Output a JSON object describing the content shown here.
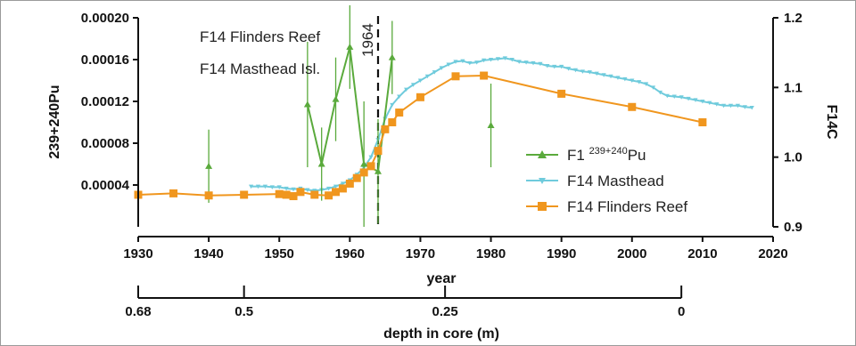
{
  "chart_data": {
    "type": "line",
    "xlabel": "year",
    "x_ticks": [
      1930,
      1940,
      1950,
      1960,
      1970,
      1980,
      1990,
      2000,
      2010,
      2020
    ],
    "xlim": [
      1930,
      2020
    ],
    "y_left": {
      "label_pre": "239+240",
      "label_main": "Pu",
      "ticks": [
        "0.00004",
        "0.00008",
        "0.00012",
        "0.00016",
        "0.00020"
      ],
      "ylim": [
        0,
        0.0002
      ]
    },
    "y_right": {
      "label": "F14C",
      "ticks": [
        "0.9",
        "1.0",
        "1.1",
        "1.2"
      ],
      "ylim": [
        0.9,
        1.2
      ]
    },
    "depth_axis": {
      "label": "depth in core (m)",
      "ticks": [
        {
          "label": "0.68",
          "year": 1930
        },
        {
          "label": "0.5",
          "year": 1945
        },
        {
          "label": "0.25",
          "year": 1973.5
        },
        {
          "label": "0",
          "year": 2007
        }
      ]
    },
    "marker_line": {
      "label": "1964",
      "year": 1964
    },
    "annotations": [
      "F14 Flinders Reef",
      "F14 Masthead Isl."
    ],
    "legend": {
      "position": "bottom-right",
      "pu_prefix": "F1 ",
      "pu_sup": "239+240",
      "pu_suffix": "Pu"
    },
    "series": [
      {
        "name": "F14 Masthead",
        "axis": "right",
        "color": "#6fcbdc",
        "marker": "triangle-down",
        "x": [
          1946,
          1947,
          1948,
          1949,
          1950,
          1951,
          1952,
          1953,
          1954,
          1955,
          1956,
          1957,
          1958,
          1959,
          1960,
          1961,
          1962,
          1963,
          1964,
          1965,
          1966,
          1967,
          1968,
          1969,
          1970,
          1971,
          1972,
          1973,
          1974,
          1975,
          1976,
          1977,
          1978,
          1979,
          1980,
          1981,
          1982,
          1983,
          1984,
          1985,
          1986,
          1987,
          1988,
          1989,
          1990,
          1991,
          1992,
          1993,
          1994,
          1995,
          1996,
          1997,
          1998,
          1999,
          2000,
          2001,
          2002,
          2003,
          2004,
          2005,
          2006,
          2007,
          2008,
          2009,
          2010,
          2011,
          2012,
          2013,
          2014,
          2015,
          2016,
          2017
        ],
        "y": [
          0.958,
          0.958,
          0.958,
          0.957,
          0.957,
          0.955,
          0.954,
          0.955,
          0.953,
          0.952,
          0.953,
          0.955,
          0.958,
          0.962,
          0.967,
          0.975,
          0.985,
          1.0,
          1.025,
          1.055,
          1.075,
          1.087,
          1.097,
          1.104,
          1.11,
          1.116,
          1.122,
          1.128,
          1.133,
          1.137,
          1.138,
          1.135,
          1.136,
          1.139,
          1.14,
          1.141,
          1.142,
          1.14,
          1.137,
          1.136,
          1.135,
          1.134,
          1.131,
          1.13,
          1.13,
          1.127,
          1.125,
          1.123,
          1.122,
          1.12,
          1.118,
          1.116,
          1.114,
          1.112,
          1.11,
          1.108,
          1.105,
          1.1,
          1.093,
          1.088,
          1.087,
          1.086,
          1.084,
          1.082,
          1.08,
          1.078,
          1.076,
          1.074,
          1.074,
          1.074,
          1.072,
          1.071
        ]
      },
      {
        "name": "F14 Flinders Reef",
        "axis": "right",
        "color": "#f0961e",
        "marker": "square",
        "x": [
          1930,
          1935,
          1940,
          1945,
          1950,
          1951,
          1952,
          1953,
          1955,
          1957,
          1958,
          1959,
          1960,
          1961,
          1962,
          1963,
          1964,
          1965,
          1966,
          1967,
          1970,
          1975,
          1979,
          1990,
          2000,
          2010
        ],
        "y": [
          0.946,
          0.948,
          0.945,
          0.946,
          0.947,
          0.946,
          0.944,
          0.95,
          0.946,
          0.945,
          0.95,
          0.955,
          0.962,
          0.97,
          0.978,
          0.987,
          1.009,
          1.04,
          1.05,
          1.064,
          1.086,
          1.116,
          1.117,
          1.091,
          1.072,
          1.05
        ]
      },
      {
        "name": "F1 239+240Pu",
        "axis": "left",
        "color": "#5aaa3c",
        "marker": "triangle-up",
        "x": [
          1954,
          1956,
          1958,
          1960,
          1962,
          1964,
          1966
        ],
        "y": [
          0.000117,
          6e-05,
          0.000122,
          0.000172,
          6e-05,
          5.3e-05,
          0.000162
        ],
        "err": [
          6e-05,
          3.5e-05,
          4e-05,
          4e-05,
          6e-05,
          5e-05,
          3.5e-05
        ],
        "lone_x": [
          1940,
          1980
        ],
        "lone_y": [
          5.8e-05,
          9.7e-05
        ],
        "lone_err": [
          3.5e-05,
          4e-05
        ]
      }
    ]
  }
}
